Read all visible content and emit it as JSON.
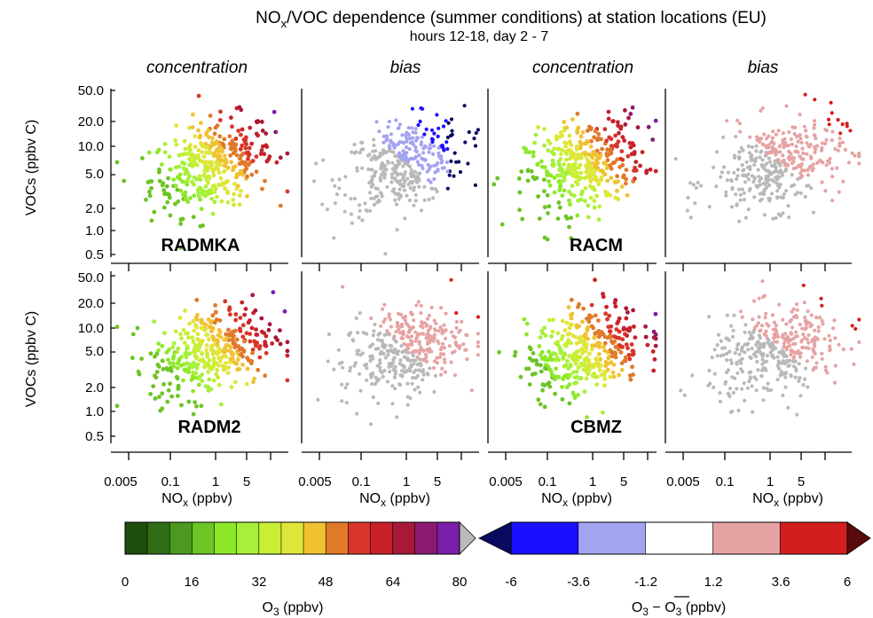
{
  "figure": {
    "title_main": "NO",
    "title_sub": "x",
    "title_rest": "/VOC dependence (summer conditions) at station locations (EU)",
    "subtitle": "hours 12-18, day 2 - 7"
  },
  "columns": [
    "concentration",
    "bias",
    "concentration",
    "bias"
  ],
  "models": [
    "RADMKA",
    "RACM",
    "RADM2",
    "CBMZ"
  ],
  "axes": {
    "ylabel": "VOCs (ppbv C)",
    "xlabel_main": "NO",
    "xlabel_sub": "x",
    "xlabel_rest": " (ppbv)",
    "x_ticks": [
      "0.005",
      "0.1",
      "1",
      "5"
    ],
    "y_ticks": [
      "0.5",
      "1.0",
      "2.0",
      "5.0",
      "10.0",
      "20.0",
      "50.0"
    ],
    "x_scale": "log",
    "y_scale": "log",
    "xlim": [
      0.002,
      12
    ],
    "ylim": [
      0.5,
      50
    ]
  },
  "colorbars": {
    "o3": {
      "label_main": "O",
      "label_sub": "3",
      "label_rest": " (ppbv)",
      "ticks": [
        "0",
        "16",
        "32",
        "48",
        "64",
        "80"
      ],
      "colors": [
        "#1e4d0e",
        "#2f6e17",
        "#4b9a1f",
        "#6cc425",
        "#8ee82a",
        "#a6f03a",
        "#c8ee36",
        "#dfe63a",
        "#f0c232",
        "#e07a2a",
        "#d8352a",
        "#c8202a",
        "#a81838",
        "#8a1a70",
        "#7a1ea8"
      ],
      "overflow_color": "#bbbbbb"
    },
    "bias": {
      "label_main": "O",
      "label_sub": "3",
      "label_mid": " − O",
      "label_sub2": "3",
      "label_rest": " (ppbv)",
      "ticks": [
        "-6",
        "-3.6",
        "-1.2",
        "1.2",
        "3.6",
        "6"
      ],
      "colors": [
        "#1a0fff",
        "#a3a3f2",
        "#ffffff",
        "#e6a3a3",
        "#d41e1e"
      ],
      "under_color": "#0a0a60",
      "over_color": "#5a0a0a"
    }
  },
  "chart_data": [
    {
      "type": "scatter",
      "panel": "concentration",
      "model": "RADMKA",
      "variable": "O3 concentration",
      "x_unit": "NOx (ppbv)",
      "y_unit": "VOCs (ppbv C)",
      "x_scale": "log",
      "y_scale": "log",
      "xlim": [
        0.002,
        12
      ],
      "ylim": [
        0.5,
        50
      ],
      "color_scale": [
        0,
        80
      ]
    },
    {
      "type": "scatter",
      "panel": "bias",
      "model": "RADMKA",
      "variable": "O3 bias",
      "x_unit": "NOx (ppbv)",
      "y_unit": "VOCs (ppbv C)",
      "x_scale": "log",
      "y_scale": "log",
      "xlim": [
        0.002,
        12
      ],
      "ylim": [
        0.5,
        50
      ],
      "color_scale": [
        -6,
        6
      ]
    },
    {
      "type": "scatter",
      "panel": "concentration",
      "model": "RACM",
      "variable": "O3 concentration",
      "x_unit": "NOx (ppbv)",
      "y_unit": "VOCs (ppbv C)",
      "x_scale": "log",
      "y_scale": "log",
      "xlim": [
        0.002,
        12
      ],
      "ylim": [
        0.5,
        50
      ],
      "color_scale": [
        0,
        80
      ]
    },
    {
      "type": "scatter",
      "panel": "bias",
      "model": "RACM",
      "variable": "O3 bias",
      "x_unit": "NOx (ppbv)",
      "y_unit": "VOCs (ppbv C)",
      "x_scale": "log",
      "y_scale": "log",
      "xlim": [
        0.002,
        12
      ],
      "ylim": [
        0.5,
        50
      ],
      "color_scale": [
        -6,
        6
      ]
    },
    {
      "type": "scatter",
      "panel": "concentration",
      "model": "RADM2",
      "variable": "O3 concentration",
      "x_unit": "NOx (ppbv)",
      "y_unit": "VOCs (ppbv C)",
      "x_scale": "log",
      "y_scale": "log",
      "xlim": [
        0.002,
        12
      ],
      "ylim": [
        0.5,
        50
      ],
      "color_scale": [
        0,
        80
      ]
    },
    {
      "type": "scatter",
      "panel": "bias",
      "model": "RADM2",
      "variable": "O3 bias",
      "x_unit": "NOx (ppbv)",
      "y_unit": "VOCs (ppbv C)",
      "x_scale": "log",
      "y_scale": "log",
      "xlim": [
        0.002,
        12
      ],
      "ylim": [
        0.5,
        50
      ],
      "color_scale": [
        -6,
        6
      ]
    },
    {
      "type": "scatter",
      "panel": "concentration",
      "model": "CBMZ",
      "variable": "O3 concentration",
      "x_unit": "NOx (ppbv)",
      "y_unit": "VOCs (ppbv C)",
      "x_scale": "log",
      "y_scale": "log",
      "xlim": [
        0.002,
        12
      ],
      "ylim": [
        0.5,
        50
      ],
      "color_scale": [
        0,
        80
      ]
    },
    {
      "type": "scatter",
      "panel": "bias",
      "model": "CBMZ",
      "variable": "O3 bias",
      "x_unit": "NOx (ppbv)",
      "y_unit": "VOCs (ppbv C)",
      "x_scale": "log",
      "y_scale": "log",
      "xlim": [
        0.002,
        12
      ],
      "ylim": [
        0.5,
        50
      ],
      "color_scale": [
        -6,
        6
      ]
    }
  ]
}
